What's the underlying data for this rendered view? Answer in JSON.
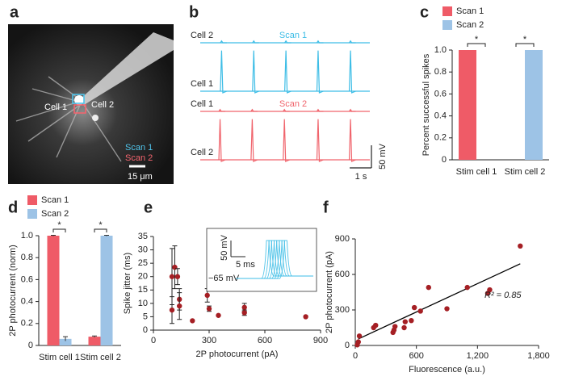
{
  "panel_a": {
    "label": "a",
    "cells": [
      "Cell 1",
      "Cell 2"
    ],
    "scans": [
      {
        "name": "Scan 1",
        "color": "#4fc3ea"
      },
      {
        "name": "Scan 2",
        "color": "#f2646e"
      }
    ],
    "scale_bar": "15 μm"
  },
  "chart_data": [
    {
      "type": "trace",
      "label": "b",
      "xlim": [
        0,
        7.8
      ],
      "scale_bar": {
        "y": {
          "value": 50,
          "label": "50 mV"
        },
        "x": {
          "value": 1,
          "label": "1 s"
        }
      },
      "groups": [
        {
          "name": "Scan 1",
          "color": "#3dbde6",
          "traces": [
            {
              "name": "Cell 2",
              "spike_times": [
                1.0,
                2.48,
                3.96,
                5.44,
                6.93
              ],
              "spike_amplitude": 4
            },
            {
              "name": "Cell 1",
              "spike_times": [
                1.0,
                2.48,
                3.96,
                5.44,
                6.93
              ],
              "spike_amplitude": 90
            }
          ]
        },
        {
          "name": "Scan 2",
          "color": "#f0646c",
          "traces": [
            {
              "name": "Cell 1",
              "spike_times": [
                0.93,
                2.41,
                3.89,
                5.44,
                6.93
              ],
              "spike_amplitude": 4
            },
            {
              "name": "Cell 2",
              "spike_times": [
                0.93,
                2.41,
                3.89,
                5.44,
                6.93
              ],
              "spike_amplitude": 90
            }
          ]
        }
      ]
    },
    {
      "type": "bar",
      "label": "c",
      "ylabel": "Percent successful spikes",
      "categories": [
        "Stim cell 1",
        "Stim cell 2"
      ],
      "series": [
        {
          "name": "Scan 1",
          "color": "#ef5b67",
          "values": [
            1,
            0
          ]
        },
        {
          "name": "Scan 2",
          "color": "#9dc3e6",
          "values": [
            0,
            1
          ]
        }
      ],
      "ylim": [
        0,
        1
      ],
      "yticks": [
        0,
        0.2,
        0.4,
        0.6,
        0.8,
        {
          "value": 1,
          "label": "1.0"
        }
      ],
      "significance": [
        "*",
        "*"
      ]
    },
    {
      "type": "bar",
      "label": "d",
      "ylabel": "2P photocurrent (norm)",
      "categories": [
        "Stim cell 1",
        "Stim cell 2"
      ],
      "series": [
        {
          "name": "Scan 1",
          "color": "#ef5b67",
          "values": [
            1,
            0.08
          ],
          "errors": [
            0.004,
            0.006
          ]
        },
        {
          "name": "Scan 2",
          "color": "#9dc3e6",
          "values": [
            0.06,
            1
          ],
          "errors": [
            0.02,
            0.004
          ]
        }
      ],
      "ylim": [
        0,
        1
      ],
      "yticks": [
        0,
        0.2,
        0.4,
        0.6,
        0.8,
        {
          "value": 1,
          "label": "1.0"
        }
      ],
      "significance": [
        "*",
        "*"
      ]
    },
    {
      "type": "scatter",
      "label": "e",
      "xlabel": "2P photocurrent (pA)",
      "ylabel": "Spike jitter (ms)",
      "color": "#a51f24",
      "x": [
        100,
        100,
        115,
        130,
        140,
        140,
        210,
        290,
        300,
        350,
        490,
        490,
        820
      ],
      "y": [
        20,
        7.5,
        23.5,
        20,
        11.5,
        9,
        3.5,
        13,
        8,
        5.5,
        8.5,
        6.5,
        5
      ],
      "errors": [
        10.5,
        5,
        8,
        3,
        4,
        5,
        null,
        2.5,
        1,
        null,
        1.5,
        1,
        null
      ],
      "xlim": [
        0,
        900
      ],
      "xticks": [
        0,
        300,
        600,
        900
      ],
      "ylim": [
        0,
        35
      ],
      "yticks": [
        0,
        5,
        10,
        15,
        20,
        25,
        30,
        35
      ],
      "inset": {
        "color": "#3dbde6",
        "y_scale": {
          "value": 50,
          "label": "50 mV"
        },
        "x_scale": {
          "value": 5,
          "label": "5 ms"
        },
        "baseline": {
          "value": -65,
          "label": "−65 mV"
        }
      }
    },
    {
      "type": "scatter",
      "label": "f",
      "xlabel": "Fluorescence (a.u.)",
      "ylabel": "2P photocurrent (pA)",
      "color": "#a51f24",
      "x": [
        20,
        30,
        40,
        180,
        200,
        370,
        380,
        390,
        480,
        490,
        550,
        580,
        640,
        720,
        900,
        1100,
        1300,
        1320,
        1620
      ],
      "y": [
        5,
        30,
        80,
        150,
        170,
        110,
        130,
        160,
        150,
        200,
        210,
        320,
        290,
        490,
        310,
        490,
        440,
        470,
        840
      ],
      "fit": {
        "x": [
          30,
          1620
        ],
        "y": [
          55,
          690
        ]
      },
      "fit_color": "#000000",
      "annotation": "R² = 0.85",
      "xlim": [
        0,
        1800
      ],
      "xticks": [
        0,
        600,
        {
          "value": 1200,
          "label": "1,200"
        },
        {
          "value": 1800,
          "label": "1,800"
        }
      ],
      "ylim": [
        0,
        900
      ],
      "yticks": [
        0,
        300,
        600,
        900
      ]
    }
  ]
}
